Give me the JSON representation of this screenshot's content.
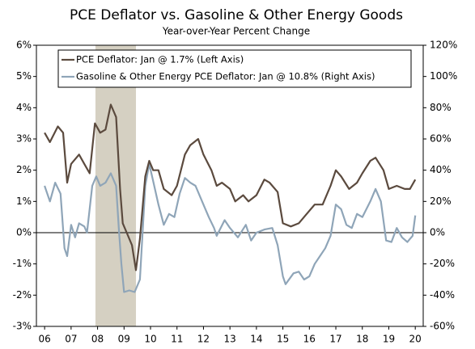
{
  "chart_data": {
    "type": "line",
    "title": "PCE Deflator vs. Gasoline & Other Energy Goods",
    "subtitle": "Year-over-Year Percent Change",
    "xlim": [
      2005.69,
      2020.3
    ],
    "xticks": [
      {
        "value": 2006,
        "label": "06"
      },
      {
        "value": 2007,
        "label": "07"
      },
      {
        "value": 2008,
        "label": "08"
      },
      {
        "value": 2009,
        "label": "09"
      },
      {
        "value": 2010,
        "label": "10"
      },
      {
        "value": 2011,
        "label": "11"
      },
      {
        "value": 2012,
        "label": "12"
      },
      {
        "value": 2013,
        "label": "13"
      },
      {
        "value": 2014,
        "label": "14"
      },
      {
        "value": 2015,
        "label": "15"
      },
      {
        "value": 2016,
        "label": "16"
      },
      {
        "value": 2017,
        "label": "17"
      },
      {
        "value": 2018,
        "label": "18"
      },
      {
        "value": 2019,
        "label": "19"
      },
      {
        "value": 2020,
        "label": "20"
      }
    ],
    "ylim": [
      -3,
      6
    ],
    "yticks": [
      {
        "value": -3,
        "label": "-3%"
      },
      {
        "value": -2,
        "label": "-2%"
      },
      {
        "value": -1,
        "label": "-1%"
      },
      {
        "value": 0,
        "label": "0%"
      },
      {
        "value": 1,
        "label": "1%"
      },
      {
        "value": 2,
        "label": "2%"
      },
      {
        "value": 3,
        "label": "3%"
      },
      {
        "value": 4,
        "label": "4%"
      },
      {
        "value": 5,
        "label": "5%"
      },
      {
        "value": 6,
        "label": "6%"
      }
    ],
    "y2lim": [
      -60,
      120
    ],
    "y2ticks": [
      {
        "value": -60,
        "label": "-60%"
      },
      {
        "value": -40,
        "label": "-40%"
      },
      {
        "value": -20,
        "label": "-20%"
      },
      {
        "value": 0,
        "label": "0%"
      },
      {
        "value": 20,
        "label": "20%"
      },
      {
        "value": 40,
        "label": "40%"
      },
      {
        "value": 60,
        "label": "60%"
      },
      {
        "value": 80,
        "label": "80%"
      },
      {
        "value": 100,
        "label": "100%"
      },
      {
        "value": 120,
        "label": "120%"
      }
    ],
    "shaded_periods": [
      [
        2007.92,
        2009.45
      ]
    ],
    "shade_color": "#d5d0c2",
    "legend": "upper left",
    "series": [
      {
        "name": "PCE Deflator: Jan @ 1.7% (Left Axis)",
        "color": "#5b4a3e",
        "axis": "y",
        "x": [
          2006.0,
          2006.2,
          2006.5,
          2006.7,
          2006.85,
          2007.0,
          2007.3,
          2007.5,
          2007.7,
          2007.9,
          2008.1,
          2008.3,
          2008.5,
          2008.7,
          2008.85,
          2008.95,
          2009.1,
          2009.3,
          2009.45,
          2009.6,
          2009.8,
          2009.95,
          2010.1,
          2010.3,
          2010.5,
          2010.8,
          2011.0,
          2011.3,
          2011.5,
          2011.8,
          2012.0,
          2012.3,
          2012.5,
          2012.7,
          2013.0,
          2013.2,
          2013.5,
          2013.7,
          2014.0,
          2014.3,
          2014.5,
          2014.8,
          2015.0,
          2015.3,
          2015.6,
          2015.9,
          2016.2,
          2016.5,
          2016.8,
          2017.0,
          2017.2,
          2017.5,
          2017.8,
          2018.0,
          2018.3,
          2018.5,
          2018.8,
          2019.0,
          2019.3,
          2019.6,
          2019.8,
          2020.0
        ],
        "values": [
          3.2,
          2.9,
          3.4,
          3.2,
          1.6,
          2.2,
          2.5,
          2.2,
          1.9,
          3.5,
          3.2,
          3.3,
          4.1,
          3.7,
          1.4,
          0.3,
          0.0,
          -0.4,
          -1.2,
          -0.2,
          1.8,
          2.3,
          2.0,
          2.0,
          1.4,
          1.2,
          1.5,
          2.5,
          2.8,
          3.0,
          2.5,
          2.0,
          1.5,
          1.6,
          1.4,
          1.0,
          1.2,
          1.0,
          1.2,
          1.7,
          1.6,
          1.3,
          0.3,
          0.2,
          0.3,
          0.6,
          0.9,
          0.9,
          1.5,
          2.0,
          1.8,
          1.4,
          1.6,
          1.9,
          2.3,
          2.4,
          2.0,
          1.4,
          1.5,
          1.4,
          1.4,
          1.7
        ]
      },
      {
        "name": "Gasoline & Other Energy PCE Deflator: Jan @ 10.8% (Right Axis)",
        "color": "#8fa5b8",
        "axis": "y2",
        "x": [
          2006.0,
          2006.2,
          2006.4,
          2006.6,
          2006.75,
          2006.85,
          2007.0,
          2007.15,
          2007.3,
          2007.5,
          2007.6,
          2007.8,
          2007.95,
          2008.1,
          2008.3,
          2008.5,
          2008.7,
          2008.8,
          2008.9,
          2009.0,
          2009.2,
          2009.4,
          2009.6,
          2009.8,
          2009.95,
          2010.1,
          2010.3,
          2010.5,
          2010.7,
          2010.9,
          2011.1,
          2011.3,
          2011.5,
          2011.7,
          2012.0,
          2012.2,
          2012.4,
          2012.5,
          2012.8,
          2013.0,
          2013.3,
          2013.6,
          2013.8,
          2014.0,
          2014.3,
          2014.6,
          2014.8,
          2015.0,
          2015.1,
          2015.4,
          2015.6,
          2015.8,
          2016.0,
          2016.2,
          2016.4,
          2016.6,
          2016.8,
          2017.0,
          2017.2,
          2017.4,
          2017.6,
          2017.8,
          2018.0,
          2018.3,
          2018.5,
          2018.7,
          2018.9,
          2019.1,
          2019.3,
          2019.5,
          2019.7,
          2019.9,
          2020.0
        ],
        "values": [
          30,
          20,
          32,
          25,
          -10,
          -15,
          5,
          -3,
          6,
          4,
          0,
          30,
          36,
          30,
          32,
          38,
          30,
          3,
          -20,
          -38,
          -37,
          -38,
          -30,
          30,
          44,
          33,
          18,
          5,
          12,
          10,
          25,
          35,
          32,
          30,
          18,
          10,
          3,
          -2,
          8,
          3,
          -3,
          5,
          -5,
          0,
          2,
          3,
          -8,
          -28,
          -33,
          -26,
          -25,
          -30,
          -28,
          -20,
          -15,
          -10,
          -2,
          18,
          15,
          5,
          3,
          12,
          10,
          20,
          28,
          20,
          -5,
          -6,
          3,
          -3,
          -6,
          -2,
          11
        ]
      }
    ]
  }
}
